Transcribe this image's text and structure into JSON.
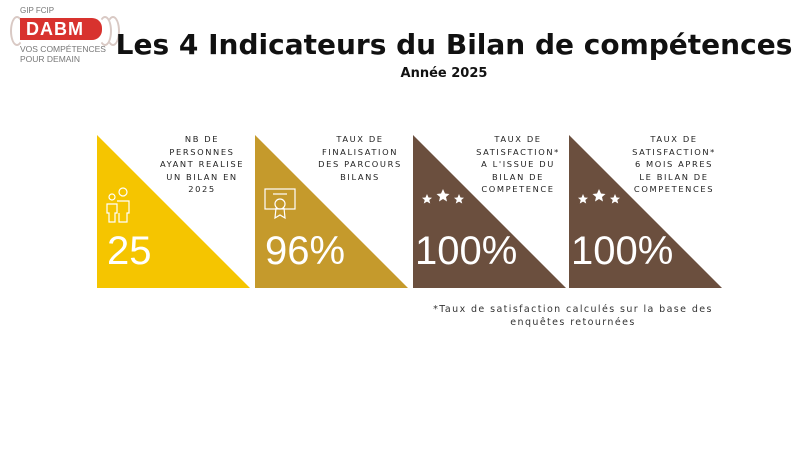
{
  "logo": {
    "org": "GIP FCIP",
    "brand": "DABM",
    "tagline_1": "VOS COMPÉTENCES",
    "tagline_2": "POUR DEMAIN"
  },
  "header": {
    "title": "Les 4 Indicateurs du Bilan de compétences",
    "subtitle": "Année 2025"
  },
  "colors": {
    "yellow": "#f5c500",
    "gold": "#c59a2c",
    "brown": "#6b4f3e"
  },
  "indicators": [
    {
      "label": "NB DE PERSONNES AYANT REALISE UN BILAN EN 2025",
      "value": "25",
      "icon": "people-icon"
    },
    {
      "label": "TAUX DE FINALISATION DES PARCOURS BILANS",
      "value": "96%",
      "icon": "certificate-icon"
    },
    {
      "label": "TAUX DE SATISFACTION* A L'ISSUE DU BILAN DE COMPETENCE",
      "value": "100%",
      "icon": "stars-icon"
    },
    {
      "label": "TAUX DE SATISFACTION* 6 MOIS APRES LE BILAN DE COMPETENCES",
      "value": "100%",
      "icon": "stars-icon"
    }
  ],
  "footnote": "*Taux de satisfaction calculés sur la base des enquêtes retournées"
}
